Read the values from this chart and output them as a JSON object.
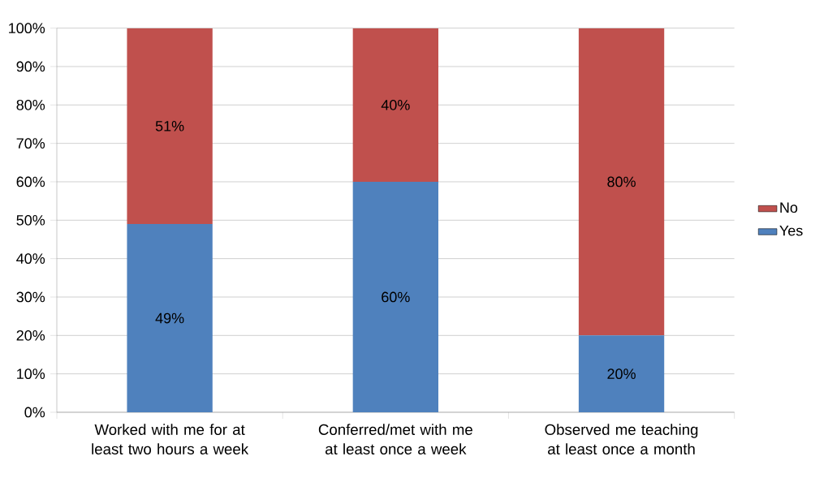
{
  "chart_data": {
    "type": "bar",
    "stacked": true,
    "categories": [
      "Worked with me for at least two hours a week",
      "Conferred/met with me at least once a week",
      "Observed me teaching at least once a month"
    ],
    "series": [
      {
        "name": "Yes",
        "color": "#4f81bd",
        "values": [
          49,
          60,
          20
        ],
        "value_labels": [
          "49%",
          "60%",
          "20%"
        ]
      },
      {
        "name": "No",
        "color": "#c0504d",
        "values": [
          51,
          40,
          80
        ],
        "value_labels": [
          "51%",
          "40%",
          "80%"
        ]
      }
    ],
    "ylim": [
      0,
      100
    ],
    "yticks": [
      {
        "value": 0,
        "label": "0%"
      },
      {
        "value": 10,
        "label": "10%"
      },
      {
        "value": 20,
        "label": "20%"
      },
      {
        "value": 30,
        "label": "30%"
      },
      {
        "value": 40,
        "label": "40%"
      },
      {
        "value": 50,
        "label": "50%"
      },
      {
        "value": 60,
        "label": "60%"
      },
      {
        "value": 70,
        "label": "70%"
      },
      {
        "value": 80,
        "label": "80%"
      },
      {
        "value": 90,
        "label": "90%"
      },
      {
        "value": 100,
        "label": "100%"
      }
    ],
    "grid": "y",
    "legend": "right"
  }
}
